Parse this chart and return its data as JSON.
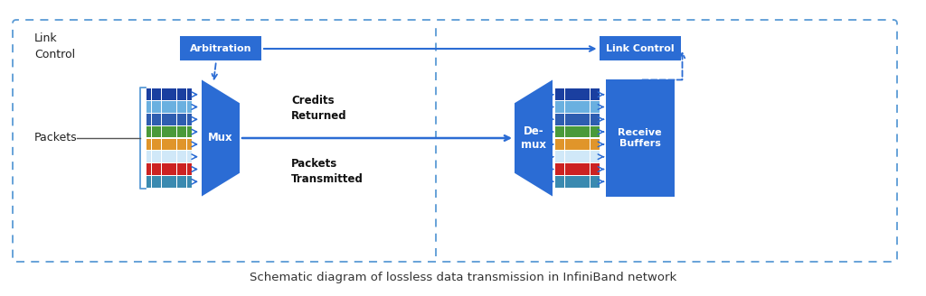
{
  "title": "Schematic diagram of lossless data transmission in InfiniBand network",
  "bg_color": "#ffffff",
  "blue_dark": "#1a4fa0",
  "blue_mid": "#2b6cd4",
  "blue_light": "#5b9bd5",
  "blue_box": "#2b6cd4",
  "packet_colors": [
    "#1a3fa0",
    "#6ab0e0",
    "#2e5db0",
    "#4a9a3a",
    "#e0952a",
    "#d0e8f8",
    "#cc2222",
    "#3a8ab0"
  ],
  "mux_label": "Mux",
  "demux_label": "De-\nmux",
  "arbitration_label": "Arbitration",
  "link_control_label": "Link Control",
  "receive_buffers_label": "Receive\nBuffers",
  "link_control_left_label": "Link\nControl",
  "packets_label": "Packets",
  "credits_returned_label": "Credits\nReturned",
  "packets_transmitted_label": "Packets\nTransmitted"
}
